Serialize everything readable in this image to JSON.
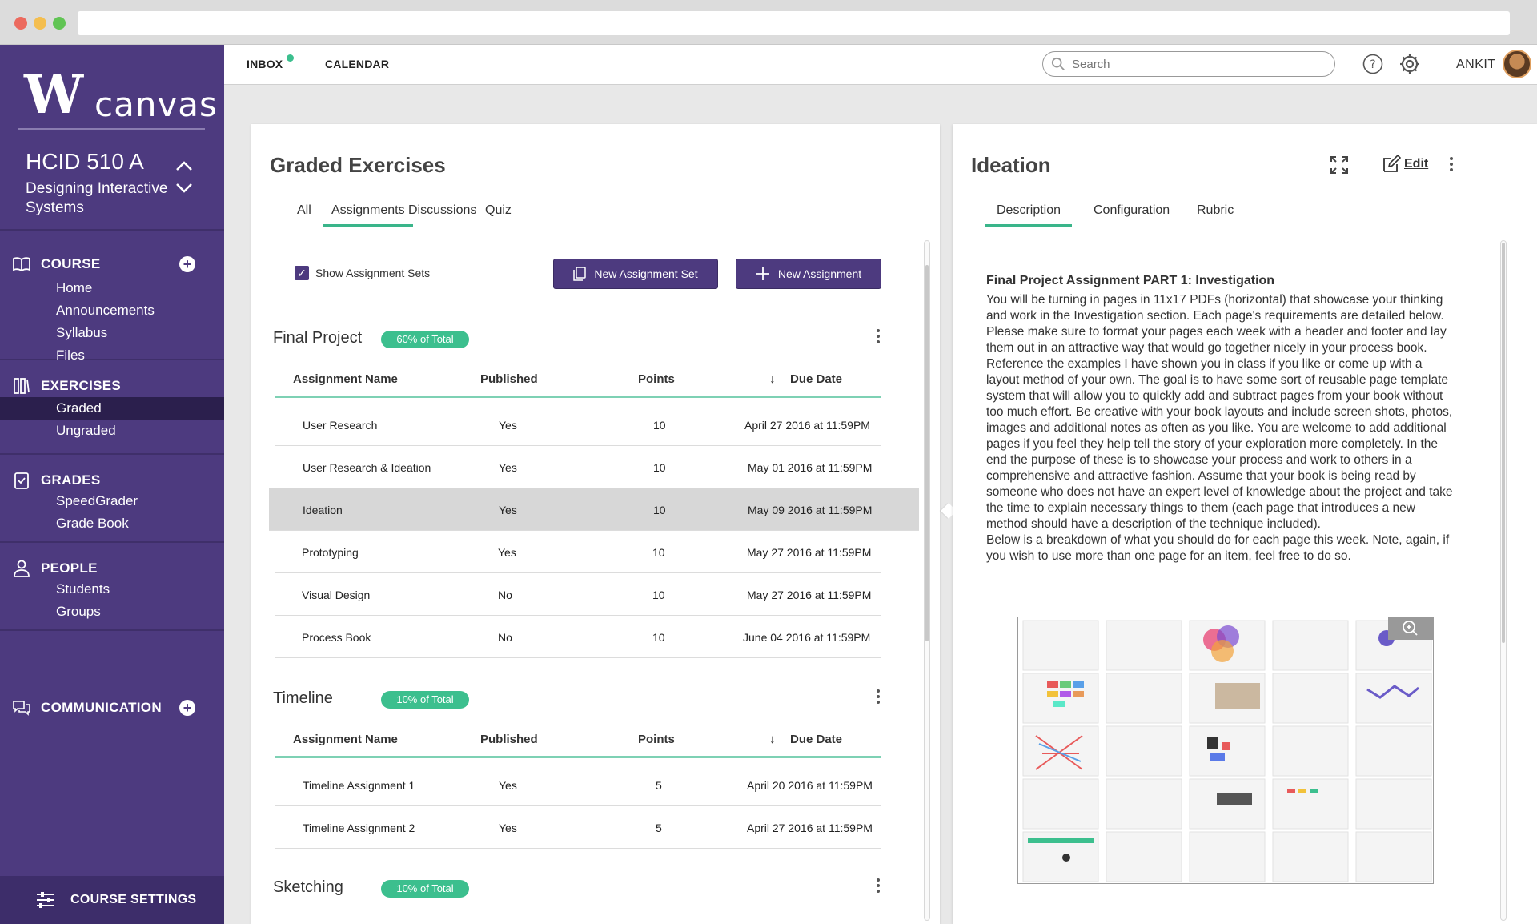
{
  "sidebar": {
    "logo_mark": "W",
    "logo_text": "canvas",
    "course_code": "HCID 510 A",
    "course_name": "Designing Interactive Systems",
    "sections": {
      "course": {
        "label": "COURSE",
        "items": [
          "Home",
          "Announcements",
          "Syllabus",
          "Files"
        ]
      },
      "exercises": {
        "label": "EXERCISES",
        "items": [
          "Graded",
          "Ungraded"
        ],
        "active": "Graded"
      },
      "grades": {
        "label": "GRADES",
        "items": [
          "SpeedGrader",
          "Grade Book"
        ]
      },
      "people": {
        "label": "PEOPLE",
        "items": [
          "Students",
          "Groups"
        ]
      },
      "communication": {
        "label": "COMMUNICATION"
      }
    },
    "settings_label": "COURSE SETTINGS"
  },
  "topbar": {
    "inbox": "INBOX",
    "calendar": "CALENDAR",
    "search_placeholder": "Search",
    "user": "ANKIT"
  },
  "left_panel": {
    "title": "Graded Exercises",
    "tabs": [
      "All",
      "Assignments",
      "Discussions",
      "Quiz"
    ],
    "active_tab": "Assignments",
    "show_sets_label": "Show Assignment Sets",
    "new_set_label": "New Assignment Set",
    "new_assignment_label": "New Assignment",
    "columns": [
      "Assignment Name",
      "Published",
      "Points",
      "Due Date"
    ],
    "groups": [
      {
        "name": "Final Project",
        "badge": "60% of Total",
        "rows": [
          {
            "name": "User Research",
            "published": "Yes",
            "points": "10",
            "due": "April 27 2016 at 11:59PM"
          },
          {
            "name": "User Research & Ideation",
            "published": "Yes",
            "points": "10",
            "due": "May 01 2016 at 11:59PM"
          },
          {
            "name": "Ideation",
            "published": "Yes",
            "points": "10",
            "due": "May 09 2016 at 11:59PM"
          },
          {
            "name": "Prototyping",
            "published": "Yes",
            "points": "10",
            "due": "May 27 2016 at 11:59PM"
          },
          {
            "name": "Visual Design",
            "published": "No",
            "points": "10",
            "due": "May 27 2016 at 11:59PM"
          },
          {
            "name": "Process Book",
            "published": "No",
            "points": "10",
            "due": "June 04 2016 at 11:59PM"
          }
        ]
      },
      {
        "name": "Timeline",
        "badge": "10% of Total",
        "rows": [
          {
            "name": "Timeline Assignment 1",
            "published": "Yes",
            "points": "5",
            "due": "April 20 2016 at 11:59PM"
          },
          {
            "name": "Timeline Assignment 2",
            "published": "Yes",
            "points": "5",
            "due": "April 27 2016 at 11:59PM"
          }
        ]
      },
      {
        "name": "Sketching",
        "badge": "10% of Total",
        "rows": []
      }
    ]
  },
  "right_panel": {
    "title": "Ideation",
    "edit_label": "Edit",
    "tabs": [
      "Description",
      "Configuration",
      "Rubric"
    ],
    "active_tab": "Description",
    "heading": "Final Project Assignment PART 1: Investigation",
    "body": "You will be turning in pages in 11x17 PDFs (horizontal) that showcase your thinking and work in the Investigation section. Each page's requirements are detailed below. Please make sure to format your pages each week with a header and footer and lay them out in an attractive way that would go together nicely in your process book. Reference the examples I have shown you in class if you like or come up with a layout method of your own. The goal is to have some sort of reusable page template system that will allow you to quickly add and subtract pages from your book without too much effort. Be creative with your book layouts and include screen shots, photos, images and additional notes as often as you like. You are welcome to add additional pages if you feel they help tell the story of your exploration more completely. In the end the purpose of these is to showcase your process and work to others in a comprehensive and attractive fashion. Assume that your book is being read by someone who does not have an expert level of knowledge about the project and take the time to explain necessary things to them (each page that introduces a new method should have a description of the technique included).",
    "body2": "Below is a breakdown of what you should do for each page this week. Note, again, if you wish to use more than one page for an item, feel free to do so."
  },
  "colors": {
    "sidebar": "#4d3a7f",
    "accent": "#3cbf8e",
    "button": "#4d3a7f"
  }
}
